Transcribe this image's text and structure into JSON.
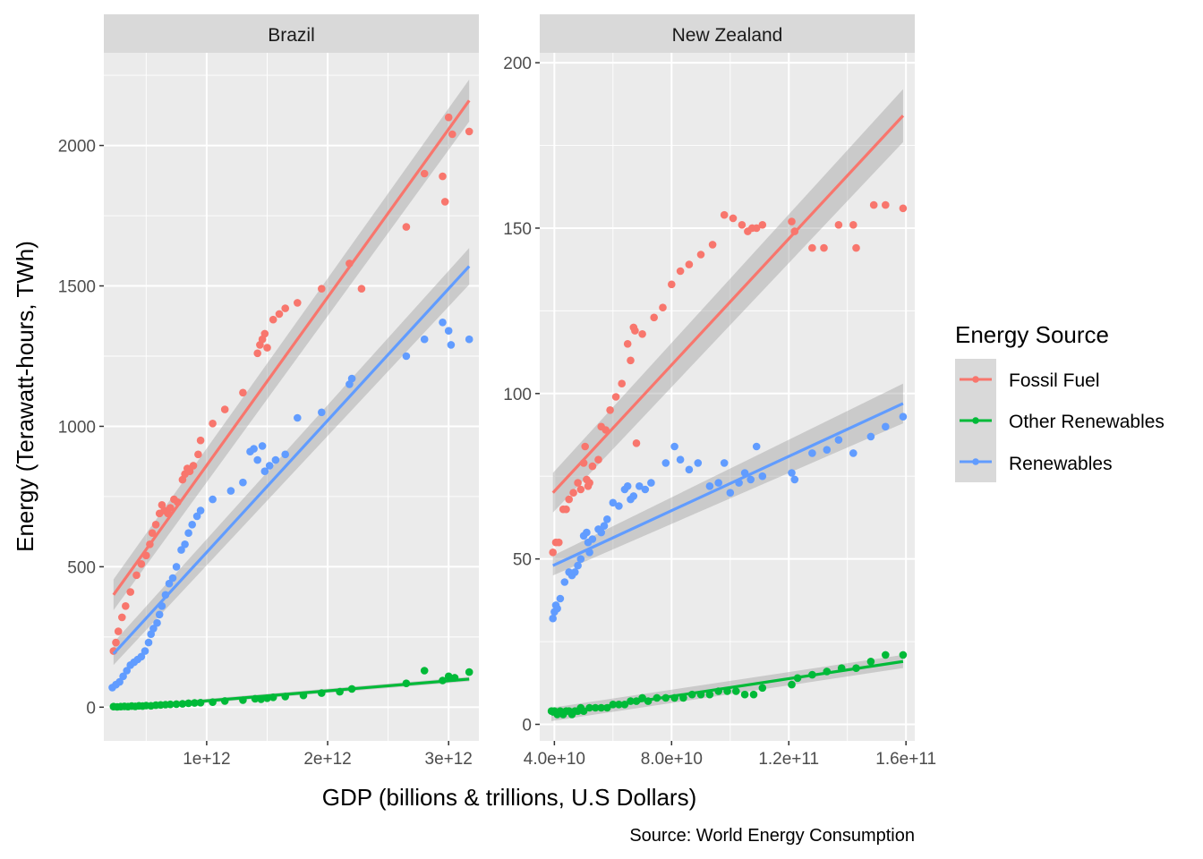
{
  "xlabel": "GDP (billions & trillions, U.S Dollars)",
  "ylabel": "Energy (Terawatt-hours, TWh)",
  "caption": "Source: World Energy Consumption",
  "legend": {
    "title": "Energy Source",
    "placement": "right",
    "items": [
      {
        "name": "Fossil Fuel",
        "color": "#F8766D"
      },
      {
        "name": "Other Renewables",
        "color": "#00BA38"
      },
      {
        "name": "Renewables",
        "color": "#619CFF"
      }
    ]
  },
  "colors": {
    "panel_bg": "#EBEBEB",
    "grid": "#FFFFFF",
    "strip_bg": "#D9D9D9",
    "ribbon": "#999999"
  },
  "chart_data": [
    {
      "type": "scatter",
      "panel": "Brazil",
      "xlim": [
        150000000000,
        3250000000000
      ],
      "ylim": [
        -120,
        2330
      ],
      "x_ticks": [
        {
          "value": 1000000000000,
          "label": "1e+12"
        },
        {
          "value": 2000000000000,
          "label": "2e+12"
        },
        {
          "value": 3000000000000,
          "label": "3e+12"
        }
      ],
      "y_ticks": [
        {
          "value": 0,
          "label": "0"
        },
        {
          "value": 500,
          "label": "500"
        },
        {
          "value": 1000,
          "label": "1000"
        },
        {
          "value": 1500,
          "label": "1500"
        },
        {
          "value": 2000,
          "label": "2000"
        }
      ],
      "series": [
        {
          "name": "Fossil Fuel",
          "x": [
            230000000000,
            250000000000,
            270000000000,
            300000000000,
            330000000000,
            370000000000,
            420000000000,
            460000000000,
            500000000000,
            530000000000,
            550000000000,
            580000000000,
            610000000000,
            630000000000,
            650000000000,
            680000000000,
            700000000000,
            730000000000,
            760000000000,
            800000000000,
            820000000000,
            840000000000,
            860000000000,
            890000000000,
            930000000000,
            950000000000,
            1050000000000,
            1150000000000,
            1300000000000,
            1420000000000,
            1440000000000,
            1460000000000,
            1480000000000,
            1500000000000,
            1550000000000,
            1600000000000,
            1650000000000,
            1750000000000,
            1950000000000,
            2180000000000,
            2280000000000,
            2650000000000,
            2800000000000,
            2950000000000,
            2970000000000,
            3000000000000,
            3030000000000,
            3170000000000
          ],
          "y": [
            200,
            230,
            270,
            320,
            360,
            410,
            470,
            510,
            540,
            580,
            620,
            650,
            690,
            720,
            700,
            690,
            710,
            740,
            730,
            810,
            830,
            850,
            840,
            860,
            900,
            950,
            1010,
            1060,
            1120,
            1260,
            1290,
            1310,
            1330,
            1280,
            1380,
            1400,
            1420,
            1440,
            1490,
            1580,
            1490,
            1710,
            1900,
            1890,
            1800,
            2100,
            2040,
            2050
          ]
        },
        {
          "name": "Renewables",
          "x": [
            220000000000,
            250000000000,
            280000000000,
            310000000000,
            340000000000,
            370000000000,
            400000000000,
            430000000000,
            460000000000,
            490000000000,
            520000000000,
            540000000000,
            560000000000,
            590000000000,
            610000000000,
            630000000000,
            660000000000,
            690000000000,
            720000000000,
            750000000000,
            790000000000,
            820000000000,
            850000000000,
            880000000000,
            920000000000,
            950000000000,
            1050000000000,
            1200000000000,
            1300000000000,
            1360000000000,
            1390000000000,
            1420000000000,
            1460000000000,
            1480000000000,
            1520000000000,
            1570000000000,
            1650000000000,
            1750000000000,
            1950000000000,
            2180000000000,
            2200000000000,
            2650000000000,
            2800000000000,
            2950000000000,
            3000000000000,
            3020000000000,
            3170000000000
          ],
          "y": [
            70,
            80,
            90,
            110,
            130,
            150,
            160,
            170,
            180,
            200,
            230,
            260,
            280,
            300,
            330,
            360,
            400,
            440,
            460,
            500,
            560,
            580,
            620,
            650,
            680,
            700,
            740,
            770,
            800,
            910,
            920,
            880,
            930,
            840,
            860,
            880,
            900,
            1030,
            1050,
            1150,
            1170,
            1250,
            1310,
            1370,
            1340,
            1290,
            1310
          ]
        },
        {
          "name": "Other Renewables",
          "x": [
            230000000000,
            260000000000,
            290000000000,
            320000000000,
            350000000000,
            380000000000,
            410000000000,
            440000000000,
            470000000000,
            500000000000,
            540000000000,
            580000000000,
            620000000000,
            660000000000,
            700000000000,
            750000000000,
            800000000000,
            850000000000,
            900000000000,
            950000000000,
            1050000000000,
            1150000000000,
            1300000000000,
            1400000000000,
            1450000000000,
            1500000000000,
            1550000000000,
            1650000000000,
            1800000000000,
            1950000000000,
            2100000000000,
            2200000000000,
            2650000000000,
            2800000000000,
            2950000000000,
            3000000000000,
            3050000000000,
            3170000000000
          ],
          "y": [
            2,
            1,
            2,
            3,
            2,
            4,
            3,
            5,
            4,
            6,
            5,
            7,
            8,
            9,
            10,
            11,
            12,
            14,
            15,
            16,
            18,
            22,
            25,
            30,
            28,
            32,
            35,
            38,
            42,
            50,
            55,
            65,
            85,
            130,
            95,
            110,
            105,
            125
          ]
        }
      ],
      "fits": [
        {
          "name": "Fossil Fuel",
          "x": [
            230000000000,
            3170000000000
          ],
          "y": [
            400,
            2160
          ],
          "se_lower": [
            345,
            2085
          ],
          "se_upper": [
            455,
            2235
          ]
        },
        {
          "name": "Renewables",
          "x": [
            230000000000,
            3170000000000
          ],
          "y": [
            190,
            1570
          ],
          "se_lower": [
            150,
            1505
          ],
          "se_upper": [
            230,
            1635
          ]
        },
        {
          "name": "Other Renewables",
          "x": [
            230000000000,
            3170000000000
          ],
          "y": [
            -5,
            100
          ],
          "se_lower": [
            -12,
            92
          ],
          "se_upper": [
            2,
            108
          ]
        }
      ]
    },
    {
      "type": "scatter",
      "panel": "New Zealand",
      "xlim": [
        35000000000,
        163000000000
      ],
      "ylim": [
        -5,
        203
      ],
      "x_ticks": [
        {
          "value": 40000000000,
          "label": "4.0e+10"
        },
        {
          "value": 80000000000,
          "label": "8.0e+10"
        },
        {
          "value": 120000000000,
          "label": "1.2e+11"
        },
        {
          "value": 160000000000,
          "label": "1.6e+11"
        }
      ],
      "y_ticks": [
        {
          "value": 0,
          "label": "0"
        },
        {
          "value": 50,
          "label": "50"
        },
        {
          "value": 100,
          "label": "100"
        },
        {
          "value": 150,
          "label": "150"
        },
        {
          "value": 200,
          "label": "200"
        }
      ],
      "series": [
        {
          "name": "Fossil Fuel",
          "x": [
            39500000000,
            40500000000,
            41500000000,
            43000000000,
            44000000000,
            45000000000,
            46500000000,
            48000000000,
            49000000000,
            50000000000,
            50500000000,
            51000000000,
            51500000000,
            52000000000,
            53000000000,
            55000000000,
            56000000000,
            57500000000,
            59000000000,
            61000000000,
            63000000000,
            65000000000,
            66000000000,
            67000000000,
            67500000000,
            68000000000,
            70000000000,
            74000000000,
            77000000000,
            80000000000,
            83000000000,
            86000000000,
            90000000000,
            94000000000,
            98000000000,
            101000000000,
            104000000000,
            106000000000,
            107500000000,
            109000000000,
            111000000000,
            121000000000,
            122000000000,
            128000000000,
            132000000000,
            137000000000,
            142000000000,
            143000000000,
            149000000000,
            153000000000,
            159000000000
          ],
          "y": [
            52,
            55,
            55,
            65,
            65,
            68,
            70,
            73,
            71,
            79,
            84,
            74,
            72,
            73,
            78,
            80,
            90,
            89,
            95,
            99,
            103,
            115,
            110,
            120,
            119,
            85,
            118,
            123,
            126,
            133,
            137,
            139,
            142,
            145,
            154,
            153,
            151,
            149,
            150,
            150,
            151,
            152,
            149,
            144,
            144,
            151,
            151,
            144,
            157,
            157,
            156
          ]
        },
        {
          "name": "Renewables",
          "x": [
            39500000000,
            40000000000,
            40500000000,
            41000000000,
            42000000000,
            43500000000,
            45000000000,
            46000000000,
            47000000000,
            48000000000,
            49000000000,
            50000000000,
            51000000000,
            51500000000,
            52000000000,
            53000000000,
            55000000000,
            56000000000,
            57000000000,
            58000000000,
            60000000000,
            62000000000,
            64000000000,
            65000000000,
            66000000000,
            67000000000,
            69000000000,
            71000000000,
            73000000000,
            78000000000,
            81000000000,
            83000000000,
            86000000000,
            89000000000,
            93000000000,
            96000000000,
            98000000000,
            100000000000,
            103000000000,
            105000000000,
            107000000000,
            109000000000,
            111000000000,
            121000000000,
            122000000000,
            128000000000,
            133000000000,
            137000000000,
            142000000000,
            148000000000,
            153000000000,
            159000000000
          ],
          "y": [
            32,
            34,
            36,
            35,
            38,
            43,
            46,
            45,
            46,
            48,
            50,
            57,
            58,
            55,
            52,
            56,
            59,
            58,
            60,
            62,
            67,
            66,
            71,
            72,
            68,
            69,
            72,
            71,
            73,
            79,
            84,
            80,
            77,
            79,
            72,
            73,
            79,
            70,
            73,
            76,
            74,
            84,
            75,
            76,
            74,
            82,
            83,
            86,
            82,
            87,
            90,
            93
          ]
        },
        {
          "name": "Other Renewables",
          "x": [
            39000000000,
            40000000000,
            41000000000,
            42000000000,
            43000000000,
            44000000000,
            45000000000,
            46000000000,
            47000000000,
            48000000000,
            49000000000,
            50000000000,
            52000000000,
            54000000000,
            56000000000,
            58000000000,
            60000000000,
            62000000000,
            64000000000,
            66000000000,
            68000000000,
            70000000000,
            72000000000,
            75000000000,
            78000000000,
            81000000000,
            84000000000,
            87000000000,
            90000000000,
            93000000000,
            96000000000,
            99000000000,
            102000000000,
            105000000000,
            108000000000,
            111000000000,
            121000000000,
            123000000000,
            128000000000,
            133000000000,
            138000000000,
            143000000000,
            148000000000,
            153000000000,
            159000000000
          ],
          "y": [
            4,
            4,
            3,
            4,
            3,
            4,
            4,
            3,
            4,
            4,
            5,
            4,
            5,
            5,
            5,
            5,
            6,
            6,
            6,
            7,
            7,
            8,
            7,
            8,
            8,
            8,
            8,
            9,
            9,
            9,
            10,
            10,
            10,
            9,
            9,
            11,
            12,
            14,
            15,
            16,
            17,
            17,
            19,
            21,
            21
          ]
        }
      ],
      "fits": [
        {
          "name": "Fossil Fuel",
          "x": [
            39500000000,
            159000000000
          ],
          "y": [
            70,
            184
          ],
          "se_lower": [
            64,
            176
          ],
          "se_upper": [
            76,
            192
          ]
        },
        {
          "name": "Renewables",
          "x": [
            39500000000,
            159000000000
          ],
          "y": [
            48,
            97
          ],
          "se_lower": [
            45,
            91
          ],
          "se_upper": [
            51,
            103
          ]
        },
        {
          "name": "Other Renewables",
          "x": [
            39000000000,
            159000000000
          ],
          "y": [
            3,
            19
          ],
          "se_lower": [
            1,
            17
          ],
          "se_upper": [
            5,
            21
          ]
        }
      ]
    }
  ]
}
